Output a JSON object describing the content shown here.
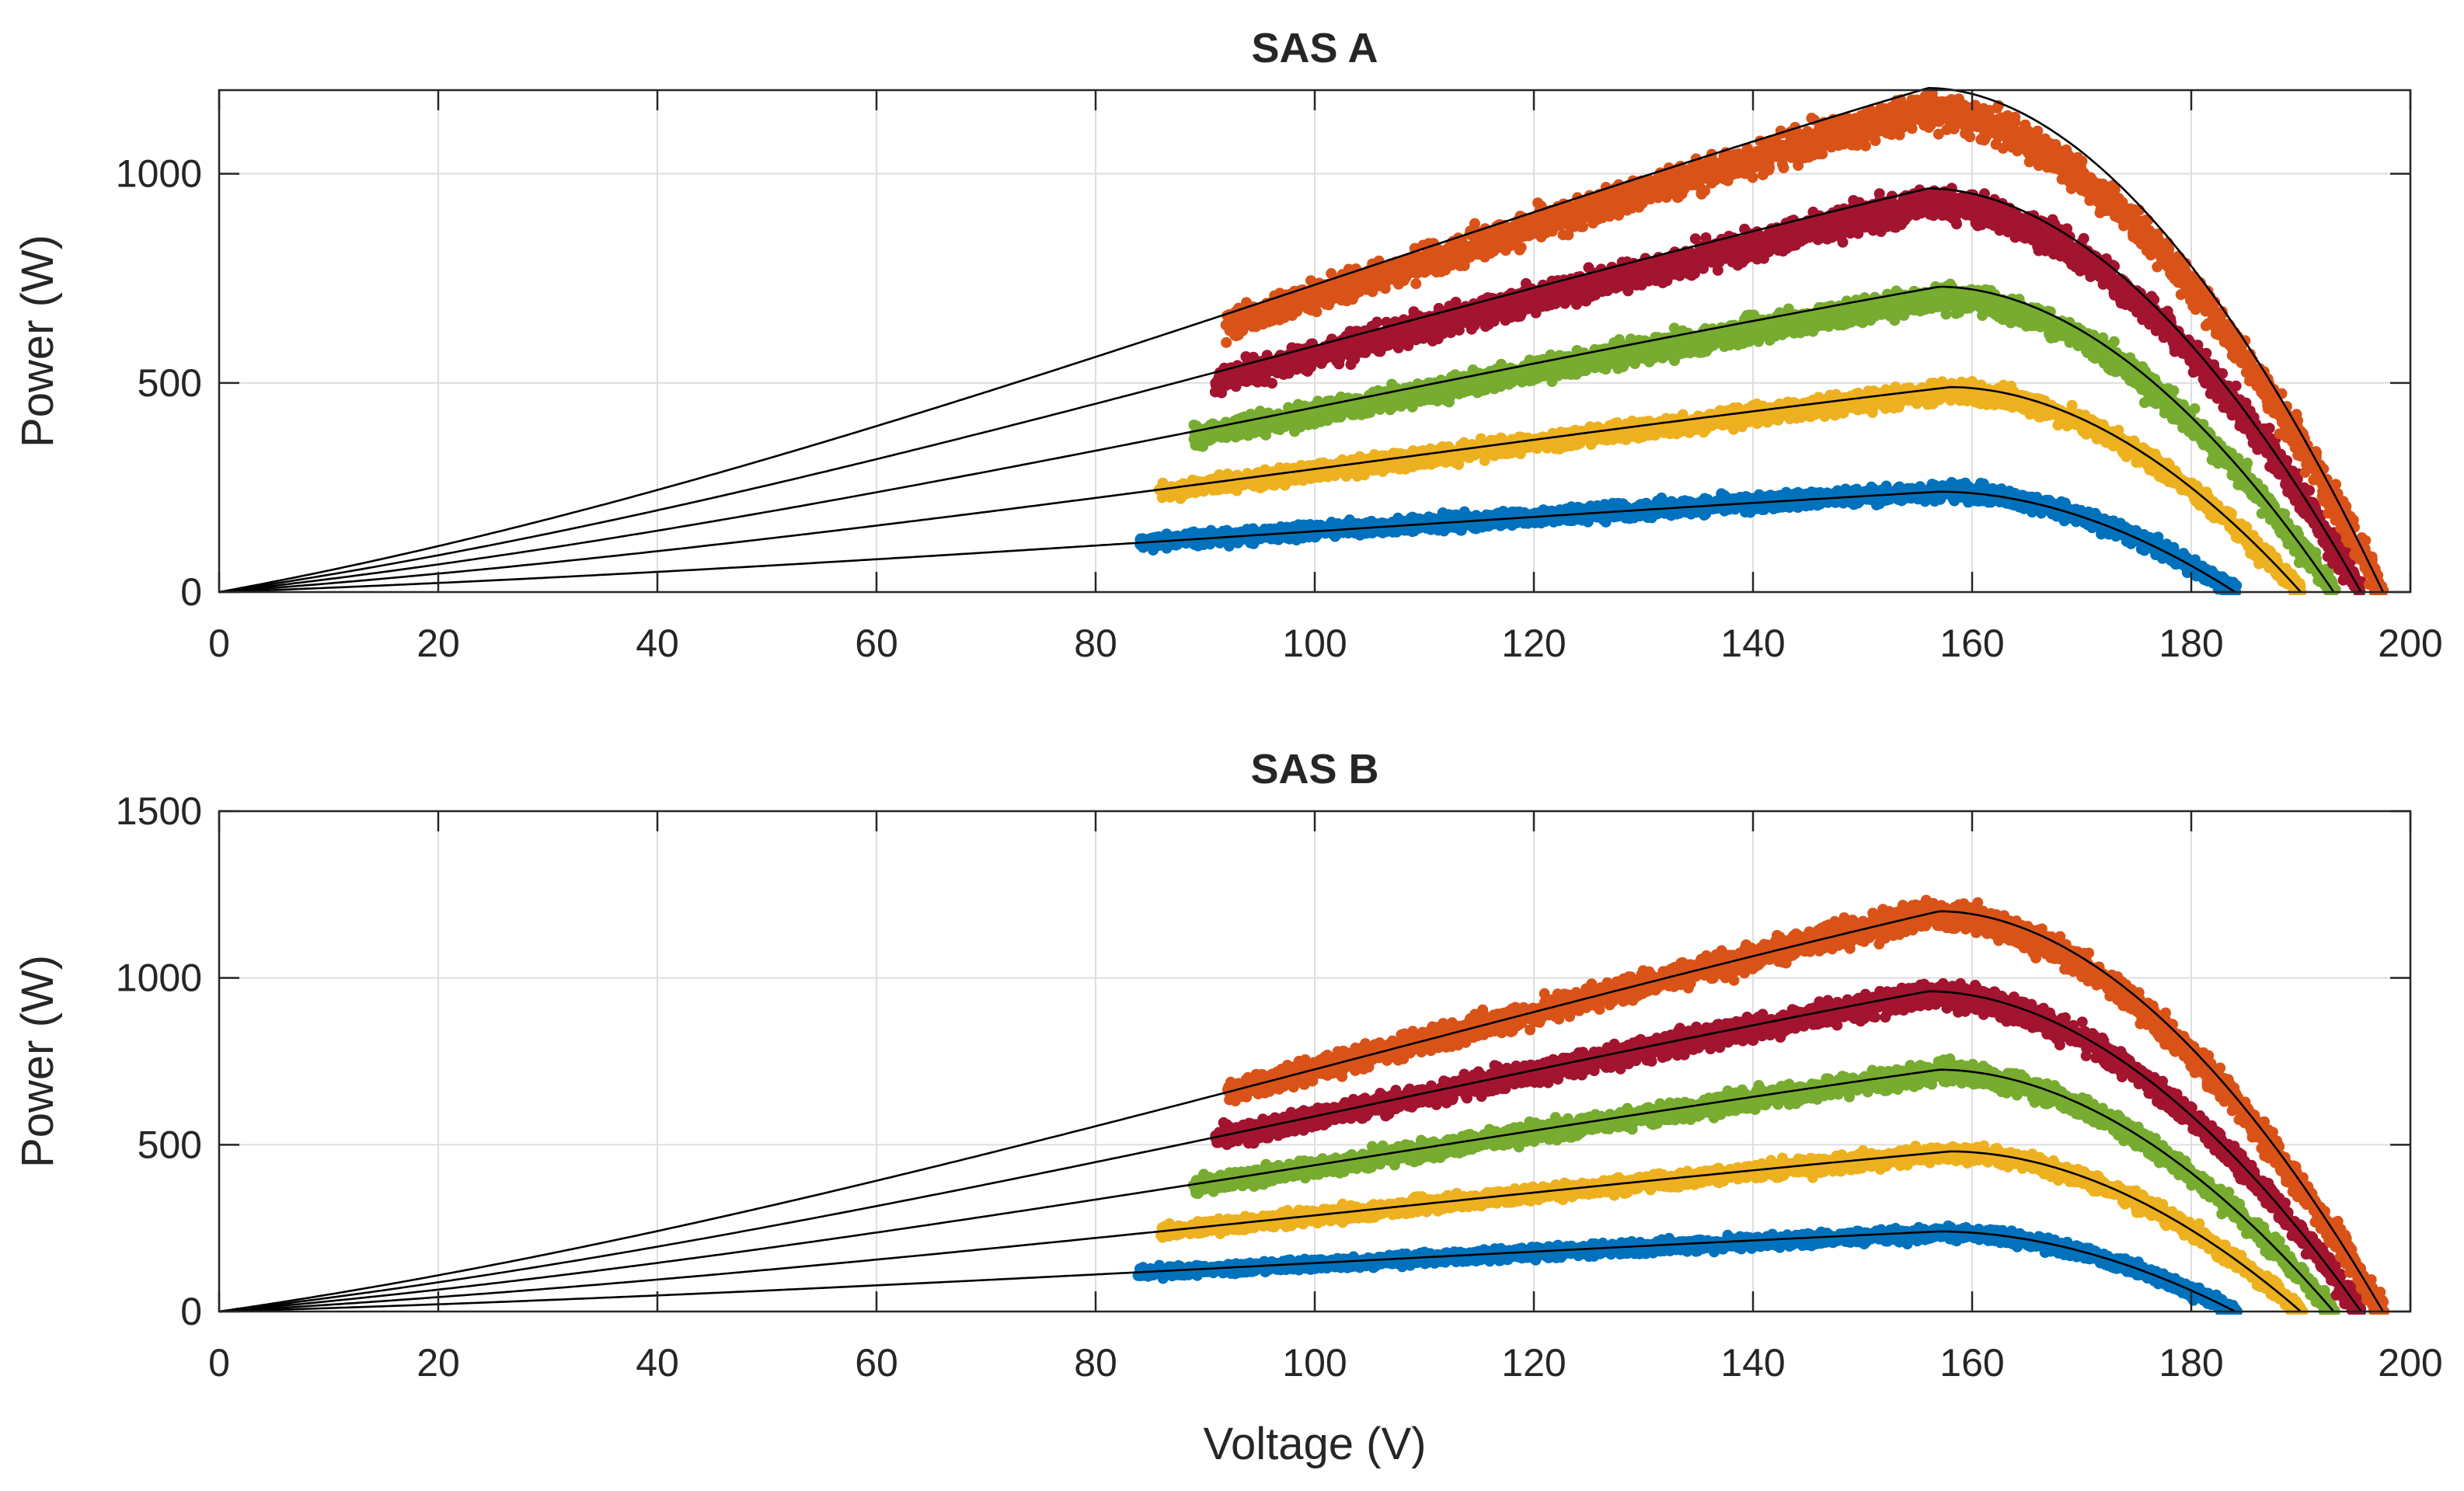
{
  "chart_data": [
    {
      "type": "scatter",
      "title": "SAS A",
      "xlabel": "",
      "ylabel": "Power (W)",
      "xlim": [
        0,
        200
      ],
      "ylim": [
        0,
        1200
      ],
      "xticks": [
        "0",
        "20",
        "40",
        "60",
        "80",
        "100",
        "120",
        "140",
        "160",
        "180",
        "200"
      ],
      "yticks": [
        "0",
        "500",
        "1000"
      ],
      "ytick_values": [
        0,
        500,
        1000
      ],
      "grid": true,
      "measured_series": [
        {
          "color": "#0072BD",
          "v_min": 84,
          "v_mpp": 157,
          "p_max": 240,
          "v_oc": 184,
          "noise": 18
        },
        {
          "color": "#EDB120",
          "v_min": 86,
          "v_mpp": 158,
          "p_max": 480,
          "v_oc": 190,
          "noise": 22
        },
        {
          "color": "#77AC30",
          "v_min": 89,
          "v_mpp": 157,
          "p_max": 705,
          "v_oc": 193,
          "noise": 28
        },
        {
          "color": "#A2142F",
          "v_min": 91,
          "v_mpp": 156,
          "p_max": 930,
          "v_oc": 195.5,
          "noise": 34
        },
        {
          "color": "#D95319",
          "v_min": 92,
          "v_mpp": 155,
          "p_max": 1150,
          "v_oc": 197.5,
          "noise": 38
        }
      ],
      "model_series": [
        {
          "v_mpp": 157,
          "p_max": 240,
          "v_oc": 184
        },
        {
          "v_mpp": 158,
          "p_max": 490,
          "v_oc": 190
        },
        {
          "v_mpp": 157,
          "p_max": 730,
          "v_oc": 193
        },
        {
          "v_mpp": 156,
          "p_max": 965,
          "v_oc": 195.5
        },
        {
          "v_mpp": 156,
          "p_max": 1205,
          "v_oc": 197.5
        }
      ]
    },
    {
      "type": "scatter",
      "title": "SAS B",
      "xlabel": "Voltage (V)",
      "ylabel": "Power (W)",
      "xlim": [
        0,
        200
      ],
      "ylim": [
        0,
        1500
      ],
      "xticks": [
        "0",
        "20",
        "40",
        "60",
        "80",
        "100",
        "120",
        "140",
        "160",
        "180",
        "200"
      ],
      "yticks": [
        "0",
        "500",
        "1000",
        "1500"
      ],
      "ytick_values": [
        0,
        500,
        1000,
        1500
      ],
      "grid": true,
      "measured_series": [
        {
          "color": "#0072BD",
          "v_min": 84,
          "v_mpp": 157,
          "p_max": 235,
          "v_oc": 184,
          "noise": 18
        },
        {
          "color": "#EDB120",
          "v_min": 86,
          "v_mpp": 158,
          "p_max": 475,
          "v_oc": 190,
          "noise": 22
        },
        {
          "color": "#77AC30",
          "v_min": 89,
          "v_mpp": 157,
          "p_max": 715,
          "v_oc": 193,
          "noise": 28
        },
        {
          "color": "#A2142F",
          "v_min": 91,
          "v_mpp": 156,
          "p_max": 950,
          "v_oc": 195.5,
          "noise": 34
        },
        {
          "color": "#D95319",
          "v_min": 92,
          "v_mpp": 156,
          "p_max": 1190,
          "v_oc": 197.5,
          "noise": 38
        }
      ],
      "model_series": [
        {
          "v_mpp": 157,
          "p_max": 240,
          "v_oc": 184
        },
        {
          "v_mpp": 158,
          "p_max": 480,
          "v_oc": 190
        },
        {
          "v_mpp": 157,
          "p_max": 725,
          "v_oc": 193
        },
        {
          "v_mpp": 156,
          "p_max": 960,
          "v_oc": 195.5
        },
        {
          "v_mpp": 157,
          "p_max": 1200,
          "v_oc": 197.5
        }
      ]
    }
  ]
}
